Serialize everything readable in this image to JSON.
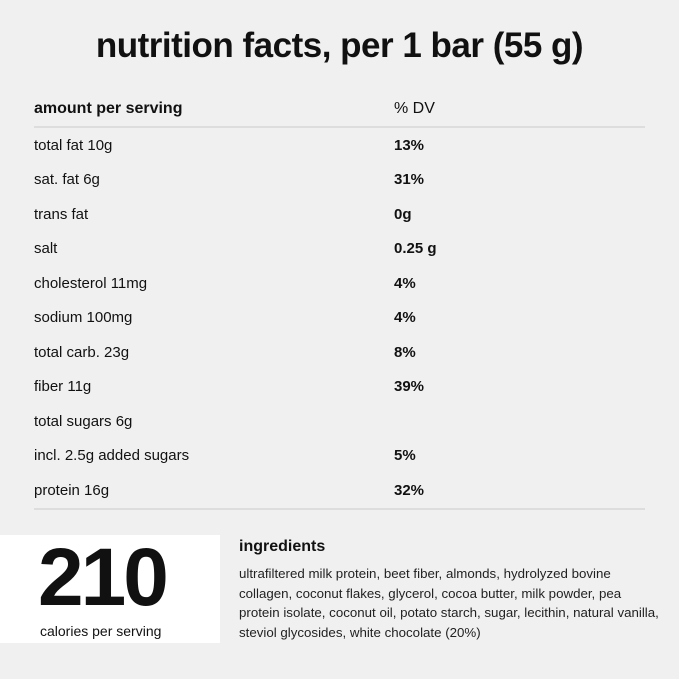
{
  "title": "nutrition facts, per 1 bar (55 g)",
  "table": {
    "header": [
      "amount per serving",
      "% DV"
    ],
    "rows": [
      [
        "total fat 10g",
        "13%"
      ],
      [
        "sat. fat 6g",
        "31%"
      ],
      [
        "trans fat",
        "0g"
      ],
      [
        "salt",
        "0.25 g"
      ],
      [
        "cholesterol 11mg",
        "4%"
      ],
      [
        "sodium 100mg",
        "4%"
      ],
      [
        "total carb. 23g",
        "8%"
      ],
      [
        "fiber 11g",
        "39%"
      ],
      [
        "total sugars 6g",
        ""
      ],
      [
        "incl. 2.5g added sugars",
        "5%"
      ],
      [
        "protein 16g",
        "32%"
      ]
    ]
  },
  "calories": {
    "value": "210",
    "label": "calories per serving"
  },
  "ingredients": {
    "title": "ingredients",
    "text": "ultrafiltered milk protein, beet fiber, almonds, hydrolyzed bovine collagen, coconut flakes, glycerol, cocoa butter, milk powder, pea protein isolate, coconut oil, potato starch, sugar, lecithin, natural vanilla, steviol glycosides, white chocolate (20%)"
  }
}
